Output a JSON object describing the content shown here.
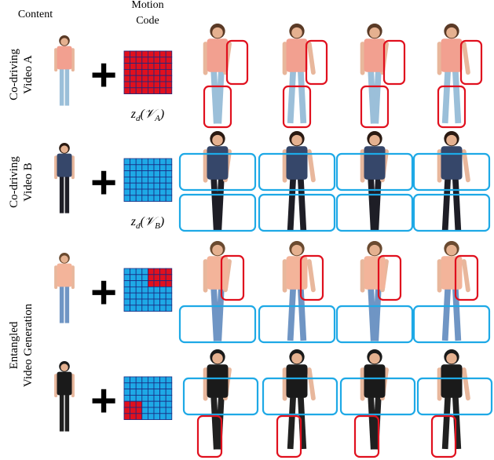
{
  "header": {
    "content": "Content",
    "motion_code": [
      "Motion",
      "Code"
    ]
  },
  "rows": [
    {
      "label": [
        "Co-driving",
        "Video A"
      ],
      "code_label": [
        "z",
        "d",
        "(𝒱",
        "A",
        ")"
      ]
    },
    {
      "label": [
        "Co-driving",
        "Video B"
      ],
      "code_label": [
        "z",
        "d",
        "(𝒱",
        "B",
        ")"
      ]
    }
  ],
  "entangled_label": [
    "Entangled",
    "Video Generation"
  ],
  "plus": "+"
}
